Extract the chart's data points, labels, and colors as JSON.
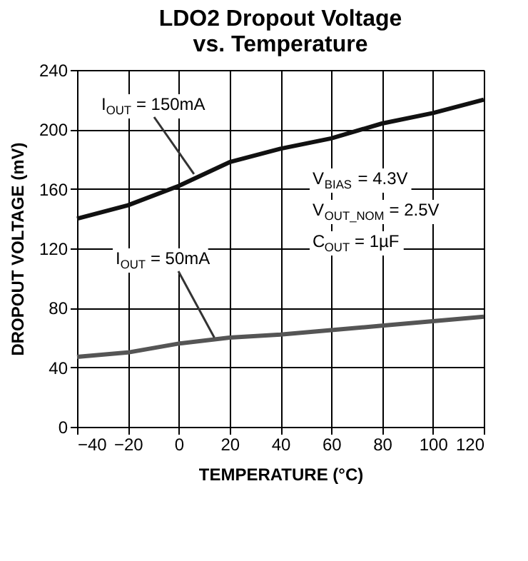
{
  "chart_data": {
    "type": "line",
    "title": [
      "LDO2 Dropout Voltage",
      "vs. Temperature"
    ],
    "xlabel": "TEMPERATURE (°C)",
    "ylabel": "DROPOUT VOLTAGE (mV)",
    "x": [
      -40,
      -20,
      0,
      20,
      40,
      60,
      80,
      100,
      120
    ],
    "series": [
      {
        "color": "#111111",
        "values": [
          140,
          149,
          162,
          178,
          187,
          194,
          204,
          211,
          220
        ]
      },
      {
        "color": "#555555",
        "values": [
          47,
          50,
          56,
          60,
          62,
          65,
          68,
          71,
          74
        ]
      }
    ],
    "xlim": [
      -40,
      120
    ],
    "xticks": [
      -40,
      -20,
      0,
      20,
      40,
      60,
      80,
      100,
      120
    ],
    "ylim": [
      0,
      240
    ],
    "yticks": [
      0,
      40,
      80,
      120,
      160,
      200,
      240
    ],
    "grid": true,
    "legend": false,
    "marker": "none",
    "line_style": "solid",
    "annotations": [
      {
        "text": "I$_{OUT}$ = 150mA",
        "x": 6,
        "y": 170
      },
      {
        "text": "I$_{OUT}$ = 50mA",
        "x": 14,
        "y": 60
      },
      "V$_{BIAS}$ = 4.3V",
      "V$_{OUT_NOM}$ = 2.5V",
      "C$_{OUT}$ = 1µF"
    ]
  }
}
